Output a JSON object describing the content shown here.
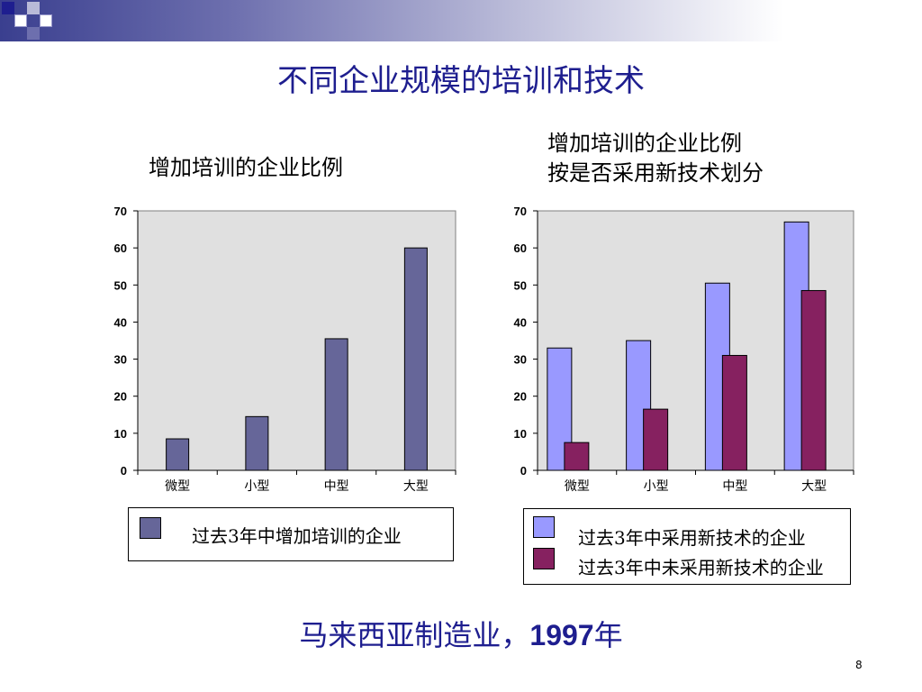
{
  "slide": {
    "title": "不同企业规模的培训和技术",
    "footer_prefix": "马来西亚制造业，",
    "footer_year": "1997",
    "footer_suffix": "年",
    "page_number": "8"
  },
  "colors": {
    "title_text": "#1e1e8f",
    "series_single": "#666699",
    "series_tech": "#9999ff",
    "series_notech": "#862160",
    "plot_bg": "#e0e0e0"
  },
  "chart_data": [
    {
      "type": "bar",
      "title": "增加培训的企业比例",
      "categories": [
        "微型",
        "小型",
        "中型",
        "大型"
      ],
      "series": [
        {
          "name": "过去3年中增加培训的企业",
          "color": "#666699",
          "values": [
            8.5,
            14.5,
            35.5,
            60
          ]
        }
      ],
      "ylim": [
        0,
        70
      ],
      "yticks": [
        0,
        10,
        20,
        30,
        40,
        50,
        60,
        70
      ],
      "grid": false,
      "legend": "bottom"
    },
    {
      "type": "bar",
      "title_lines": [
        "增加培训的企业比例",
        "按是否采用新技术划分"
      ],
      "categories": [
        "微型",
        "小型",
        "中型",
        "大型"
      ],
      "series": [
        {
          "name": "过去3年中采用新技术的企业",
          "color": "#9999ff",
          "values": [
            33,
            35,
            50.5,
            67
          ]
        },
        {
          "name": "过去3年中未采用新技术的企业",
          "color": "#862160",
          "values": [
            7.5,
            16.5,
            31,
            48.5
          ]
        }
      ],
      "ylim": [
        0,
        70
      ],
      "yticks": [
        0,
        10,
        20,
        30,
        40,
        50,
        60,
        70
      ],
      "grid": false,
      "legend": "bottom"
    }
  ]
}
